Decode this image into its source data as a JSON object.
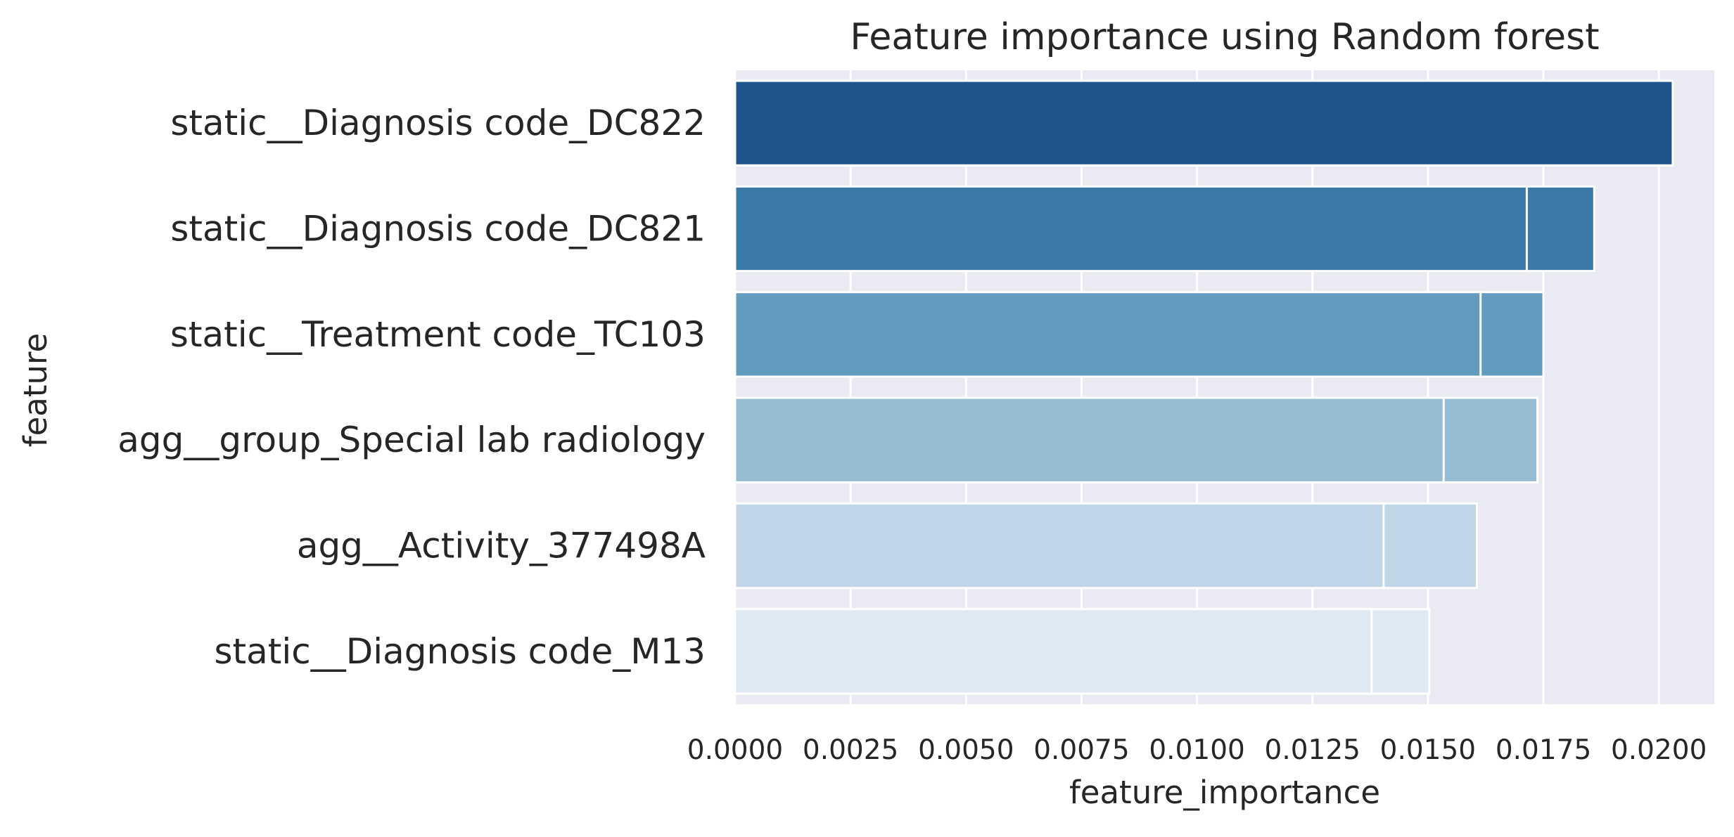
{
  "chart_data": {
    "type": "bar",
    "orientation": "horizontal",
    "title": "Feature importance using Random forest",
    "xlabel": "feature_importance",
    "ylabel": "feature",
    "xlim": [
      0,
      0.0212
    ],
    "xticks": [
      0.0,
      0.0025,
      0.005,
      0.0075,
      0.01,
      0.0125,
      0.015,
      0.0175,
      0.02
    ],
    "xtick_labels": [
      "0.0000",
      "0.0025",
      "0.0050",
      "0.0075",
      "0.0100",
      "0.0125",
      "0.0150",
      "0.0175",
      "0.0200"
    ],
    "grid": true,
    "categories": [
      "static__Diagnosis code_DC822",
      "static__Diagnosis code_DC821",
      "static__Treatment code_TC103",
      "agg__group_Special lab radiology",
      "agg__Activity_377498A",
      "static__Diagnosis code_M13"
    ],
    "series": [
      {
        "values": [
          0.0203,
          0.01714,
          0.01614,
          0.01534,
          0.01404,
          0.01378
        ]
      },
      {
        "values": [
          0.0203,
          0.0186,
          0.0175,
          0.01737,
          0.01606,
          0.01503
        ]
      }
    ],
    "colors": [
      "#20558c",
      "#3b7aa8",
      "#639bbe",
      "#94bcd3",
      "#c0d6e6",
      "#dfe9f3"
    ],
    "background_color": "#eaeaf2",
    "grid_color": "#ffffff",
    "text_color": "#262626"
  }
}
